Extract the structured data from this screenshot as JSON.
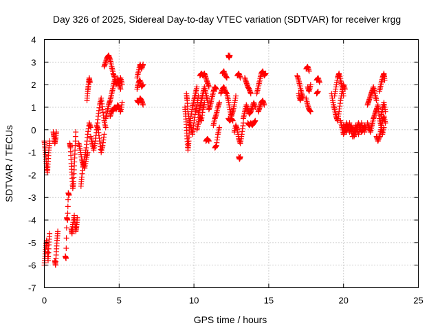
{
  "chart_data": {
    "type": "scatter",
    "title": "Day 326 of 2025, Sidereal Day-to-day VTEC variation (SDTVAR) for receiver krgg",
    "xlabel": "GPS time / hours",
    "ylabel": "SDTVAR / TECUs",
    "xlim": [
      0,
      25
    ],
    "ylim": [
      -7,
      4
    ],
    "xticks": [
      0,
      5,
      10,
      15,
      20,
      25
    ],
    "yticks": [
      -7,
      -6,
      -5,
      -4,
      -3,
      -2,
      -1,
      0,
      1,
      2,
      3,
      4
    ],
    "grid": true,
    "marker": "+",
    "color": "#ff0000",
    "segments": [
      [
        [
          0.0,
          -0.5
        ],
        [
          0.05,
          -0.8
        ],
        [
          0.1,
          -1.2
        ],
        [
          0.15,
          -1.6
        ],
        [
          0.2,
          -1.9
        ],
        [
          0.25,
          -1.4
        ],
        [
          0.3,
          -0.9
        ],
        [
          0.35,
          -0.5
        ]
      ],
      [
        [
          0.0,
          -6.0
        ],
        [
          0.05,
          -5.6
        ],
        [
          0.1,
          -5.2
        ],
        [
          0.15,
          -4.9
        ],
        [
          0.2,
          -5.4
        ],
        [
          0.25,
          -5.8
        ],
        [
          0.3,
          -5.1
        ],
        [
          0.35,
          -4.6
        ]
      ],
      [
        [
          0.6,
          -0.1
        ],
        [
          0.65,
          -0.3
        ],
        [
          0.7,
          -0.6
        ],
        [
          0.75,
          -0.4
        ],
        [
          0.8,
          -0.1
        ]
      ],
      [
        [
          0.7,
          -5.8
        ],
        [
          0.75,
          -6.0
        ],
        [
          0.8,
          -5.4
        ],
        [
          0.85,
          -4.9
        ],
        [
          0.9,
          -4.5
        ]
      ],
      [
        [
          1.4,
          -5.6
        ],
        [
          1.45,
          -5.7
        ],
        [
          1.5,
          -3.9
        ],
        [
          1.55,
          -4.0
        ],
        [
          1.6,
          -2.8
        ],
        [
          1.65,
          -2.9
        ]
      ],
      [
        [
          1.7,
          -0.6
        ],
        [
          1.75,
          -0.8
        ],
        [
          1.8,
          -1.5
        ],
        [
          1.85,
          -2.0
        ],
        [
          1.9,
          -2.6
        ],
        [
          1.95,
          -2.3
        ],
        [
          2.0,
          -1.6
        ],
        [
          2.05,
          -0.9
        ],
        [
          2.1,
          -0.1
        ]
      ],
      [
        [
          1.8,
          -4.4
        ],
        [
          1.85,
          -4.6
        ],
        [
          1.9,
          -4.2
        ],
        [
          2.0,
          -3.8
        ],
        [
          2.1,
          -4.5
        ],
        [
          2.15,
          -4.3
        ],
        [
          2.2,
          -3.9
        ]
      ],
      [
        [
          2.3,
          -0.6
        ],
        [
          2.4,
          -0.9
        ],
        [
          2.5,
          -1.3
        ],
        [
          2.6,
          -1.6
        ],
        [
          2.7,
          -1.2
        ],
        [
          2.8,
          -0.8
        ],
        [
          2.9,
          -0.2
        ],
        [
          3.0,
          0.3
        ],
        [
          3.1,
          0.1
        ]
      ],
      [
        [
          2.45,
          -2.5
        ],
        [
          2.5,
          -2.1
        ],
        [
          2.6,
          -1.5
        ],
        [
          2.7,
          -1.7
        ],
        [
          2.8,
          -1.3
        ],
        [
          2.9,
          -1.0
        ]
      ],
      [
        [
          2.85,
          1.3
        ],
        [
          2.9,
          1.7
        ],
        [
          2.95,
          2.0
        ],
        [
          3.0,
          2.3
        ],
        [
          3.05,
          2.1
        ]
      ],
      [
        [
          3.1,
          -0.3
        ],
        [
          3.2,
          -0.6
        ],
        [
          3.3,
          -0.9
        ],
        [
          3.4,
          -0.5
        ],
        [
          3.5,
          0.0
        ],
        [
          3.6,
          0.6
        ],
        [
          3.7,
          1.1
        ],
        [
          3.8,
          1.4
        ],
        [
          3.9,
          0.9
        ],
        [
          4.0,
          0.4
        ],
        [
          4.1,
          0.1
        ]
      ],
      [
        [
          3.5,
          0.2
        ],
        [
          3.6,
          0.0
        ],
        [
          3.7,
          -0.5
        ],
        [
          3.8,
          -1.0
        ],
        [
          3.9,
          -0.7
        ],
        [
          4.0,
          -0.2
        ]
      ],
      [
        [
          4.1,
          0.5
        ],
        [
          4.2,
          0.8
        ],
        [
          4.3,
          1.1
        ],
        [
          4.4,
          1.3
        ],
        [
          4.5,
          1.6
        ],
        [
          4.6,
          1.9
        ],
        [
          4.7,
          2.2
        ]
      ],
      [
        [
          4.0,
          2.8
        ],
        [
          4.1,
          3.0
        ],
        [
          4.2,
          3.2
        ],
        [
          4.3,
          3.3
        ],
        [
          4.4,
          3.1
        ],
        [
          4.5,
          2.8
        ],
        [
          4.6,
          2.5
        ],
        [
          4.7,
          2.3
        ],
        [
          4.8,
          2.0
        ],
        [
          4.9,
          2.2
        ],
        [
          5.0,
          2.0
        ],
        [
          5.1,
          1.8
        ]
      ],
      [
        [
          4.4,
          0.6
        ],
        [
          4.5,
          0.8
        ],
        [
          4.6,
          0.9
        ],
        [
          4.7,
          1.0
        ],
        [
          4.8,
          0.9
        ],
        [
          4.9,
          1.1
        ],
        [
          5.0,
          1.0
        ],
        [
          5.1,
          0.8
        ],
        [
          5.2,
          1.2
        ]
      ],
      [
        [
          4.9,
          2.3
        ],
        [
          5.0,
          2.1
        ],
        [
          5.1,
          2.3
        ],
        [
          5.2,
          2.0
        ]
      ],
      [
        [
          6.2,
          2.3
        ],
        [
          6.3,
          2.6
        ],
        [
          6.4,
          2.9
        ],
        [
          6.5,
          2.7
        ],
        [
          6.6,
          2.9
        ]
      ],
      [
        [
          6.2,
          1.3
        ],
        [
          6.3,
          1.2
        ],
        [
          6.4,
          1.4
        ],
        [
          6.5,
          1.3
        ],
        [
          6.6,
          1.1
        ]
      ],
      [
        [
          6.2,
          1.8
        ],
        [
          6.3,
          2.1
        ],
        [
          6.4,
          2.2
        ],
        [
          6.5,
          1.9
        ],
        [
          6.6,
          2.0
        ]
      ],
      [
        [
          9.4,
          1.0
        ],
        [
          9.45,
          0.6
        ],
        [
          9.5,
          0.1
        ],
        [
          9.55,
          -0.4
        ],
        [
          9.6,
          -0.9
        ],
        [
          9.65,
          -0.5
        ],
        [
          9.7,
          0.2
        ],
        [
          9.8,
          0.6
        ],
        [
          9.9,
          1.0
        ],
        [
          10.0,
          1.3
        ],
        [
          10.1,
          1.6
        ],
        [
          10.2,
          1.9
        ]
      ],
      [
        [
          9.5,
          1.6
        ],
        [
          9.55,
          1.3
        ],
        [
          9.6,
          0.8
        ],
        [
          9.7,
          0.4
        ],
        [
          9.8,
          0.1
        ],
        [
          9.9,
          -0.2
        ],
        [
          10.0,
          0.3
        ],
        [
          10.1,
          0.8
        ],
        [
          10.2,
          1.1
        ],
        [
          10.3,
          1.5
        ]
      ],
      [
        [
          10.4,
          2.4
        ],
        [
          10.5,
          2.5
        ],
        [
          10.6,
          2.4
        ],
        [
          10.7,
          2.5
        ],
        [
          10.8,
          2.3
        ],
        [
          10.9,
          2.1
        ],
        [
          11.0,
          1.9
        ]
      ],
      [
        [
          10.3,
          0.7
        ],
        [
          10.4,
          1.0
        ],
        [
          10.5,
          1.3
        ],
        [
          10.6,
          1.6
        ],
        [
          10.7,
          1.9
        ],
        [
          10.8,
          1.6
        ],
        [
          10.9,
          1.3
        ],
        [
          11.0,
          0.9
        ],
        [
          11.1,
          1.1
        ],
        [
          11.2,
          1.4
        ],
        [
          11.3,
          1.7
        ],
        [
          11.4,
          1.9
        ],
        [
          11.5,
          1.8
        ]
      ],
      [
        [
          10.2,
          0.0
        ],
        [
          10.3,
          0.3
        ],
        [
          10.4,
          0.6
        ],
        [
          10.5,
          0.4
        ],
        [
          10.6,
          0.9
        ],
        [
          10.7,
          1.2
        ]
      ],
      [
        [
          10.8,
          -0.5
        ],
        [
          10.9,
          -0.4
        ],
        [
          11.0,
          -0.5
        ]
      ],
      [
        [
          11.3,
          0.2
        ],
        [
          11.4,
          0.5
        ],
        [
          11.5,
          0.7
        ],
        [
          11.6,
          1.0
        ],
        [
          11.7,
          1.2
        ]
      ],
      [
        [
          11.4,
          -0.8
        ],
        [
          11.5,
          -0.7
        ],
        [
          11.6,
          -0.2
        ],
        [
          11.7,
          0.1
        ]
      ],
      [
        [
          11.8,
          1.6
        ],
        [
          11.9,
          1.8
        ],
        [
          12.0,
          1.9
        ],
        [
          12.1,
          1.7
        ],
        [
          12.2,
          1.6
        ],
        [
          12.3,
          1.3
        ],
        [
          12.4,
          0.9
        ],
        [
          12.5,
          0.6
        ],
        [
          12.6,
          0.8
        ],
        [
          12.7,
          1.1
        ],
        [
          12.8,
          1.5
        ]
      ],
      [
        [
          12.3,
          0.5
        ],
        [
          12.4,
          0.4
        ],
        [
          12.5,
          0.5
        ],
        [
          12.6,
          0.4
        ]
      ],
      [
        [
          12.3,
          3.3
        ],
        [
          12.35,
          3.2
        ],
        [
          12.4,
          3.3
        ]
      ],
      [
        [
          11.9,
          2.5
        ],
        [
          12.0,
          2.6
        ],
        [
          12.1,
          2.4
        ],
        [
          12.2,
          2.3
        ]
      ],
      [
        [
          12.7,
          -0.1
        ],
        [
          12.8,
          0.2
        ],
        [
          12.9,
          0.0
        ],
        [
          13.0,
          -0.4
        ],
        [
          13.1,
          -0.6
        ],
        [
          13.2,
          -0.2
        ],
        [
          13.3,
          0.3
        ]
      ],
      [
        [
          13.0,
          -1.2
        ],
        [
          13.05,
          -1.3
        ],
        [
          13.1,
          -1.2
        ]
      ],
      [
        [
          12.9,
          2.4
        ],
        [
          13.0,
          2.5
        ],
        [
          13.1,
          2.3
        ]
      ],
      [
        [
          13.4,
          2.3
        ],
        [
          13.5,
          2.1
        ],
        [
          13.6,
          1.9
        ],
        [
          13.7,
          1.8
        ],
        [
          13.8,
          1.6
        ]
      ],
      [
        [
          13.3,
          0.5
        ],
        [
          13.4,
          0.8
        ],
        [
          13.5,
          1.1
        ],
        [
          13.6,
          0.9
        ],
        [
          13.7,
          0.7
        ],
        [
          13.8,
          0.8
        ],
        [
          13.9,
          1.0
        ],
        [
          14.0,
          1.2
        ],
        [
          14.1,
          1.0
        ]
      ],
      [
        [
          13.6,
          0.3
        ],
        [
          13.7,
          0.2
        ],
        [
          13.8,
          0.3
        ],
        [
          13.9,
          0.2
        ],
        [
          14.0,
          0.3
        ],
        [
          14.1,
          0.4
        ]
      ],
      [
        [
          14.2,
          1.6
        ],
        [
          14.3,
          1.9
        ],
        [
          14.4,
          2.2
        ],
        [
          14.5,
          2.5
        ],
        [
          14.6,
          2.6
        ],
        [
          14.7,
          2.4
        ],
        [
          14.8,
          2.5
        ]
      ],
      [
        [
          14.3,
          0.8
        ],
        [
          14.4,
          1.0
        ],
        [
          14.5,
          1.2
        ],
        [
          14.6,
          1.3
        ],
        [
          14.7,
          1.1
        ]
      ],
      [
        [
          16.9,
          2.4
        ],
        [
          17.0,
          2.2
        ],
        [
          17.1,
          1.9
        ],
        [
          17.2,
          1.6
        ],
        [
          17.3,
          1.4
        ]
      ],
      [
        [
          17.0,
          1.6
        ],
        [
          17.1,
          1.3
        ],
        [
          17.2,
          1.5
        ]
      ],
      [
        [
          17.5,
          2.7
        ],
        [
          17.6,
          2.8
        ],
        [
          17.7,
          2.6
        ]
      ],
      [
        [
          17.5,
          1.4
        ],
        [
          17.6,
          1.1
        ],
        [
          17.7,
          0.9
        ],
        [
          17.8,
          0.8
        ]
      ],
      [
        [
          17.6,
          1.9
        ],
        [
          17.7,
          1.7
        ],
        [
          17.8,
          2.0
        ]
      ],
      [
        [
          18.2,
          2.2
        ],
        [
          18.3,
          2.3
        ],
        [
          18.4,
          2.1
        ]
      ],
      [
        [
          18.2,
          1.6
        ],
        [
          18.3,
          1.7
        ]
      ],
      [
        [
          19.2,
          1.6
        ],
        [
          19.3,
          1.2
        ],
        [
          19.4,
          0.9
        ],
        [
          19.5,
          0.6
        ],
        [
          19.6,
          0.4
        ],
        [
          19.7,
          0.8
        ],
        [
          19.8,
          1.3
        ],
        [
          19.9,
          1.7
        ],
        [
          20.0,
          2.0
        ],
        [
          20.1,
          1.8
        ]
      ],
      [
        [
          19.4,
          1.5
        ],
        [
          19.5,
          1.9
        ],
        [
          19.6,
          2.3
        ],
        [
          19.7,
          2.5
        ],
        [
          19.8,
          2.2
        ],
        [
          19.9,
          1.9
        ],
        [
          20.0,
          1.5
        ]
      ],
      [
        [
          19.8,
          0.4
        ],
        [
          19.9,
          0.1
        ],
        [
          20.0,
          -0.2
        ],
        [
          20.1,
          0.0
        ],
        [
          20.2,
          0.3
        ],
        [
          20.3,
          0.1
        ],
        [
          20.4,
          -0.1
        ],
        [
          20.5,
          0.2
        ],
        [
          20.6,
          0.0
        ],
        [
          20.7,
          -0.3
        ],
        [
          20.8,
          -0.1
        ],
        [
          20.9,
          0.1
        ],
        [
          21.0,
          0.3
        ],
        [
          21.1,
          0.1
        ],
        [
          21.2,
          -0.1
        ],
        [
          21.3,
          0.0
        ],
        [
          21.4,
          0.2
        ],
        [
          21.5,
          0.0
        ]
      ],
      [
        [
          20.0,
          0.2
        ],
        [
          20.2,
          -0.1
        ],
        [
          20.4,
          0.3
        ],
        [
          20.6,
          -0.3
        ],
        [
          20.8,
          0.2
        ],
        [
          21.0,
          -0.2
        ],
        [
          21.2,
          0.3
        ],
        [
          21.4,
          -0.1
        ]
      ],
      [
        [
          21.6,
          0.3
        ],
        [
          21.7,
          0.1
        ],
        [
          21.8,
          -0.1
        ],
        [
          21.9,
          0.2
        ],
        [
          22.0,
          0.5
        ],
        [
          22.1,
          0.7
        ],
        [
          22.2,
          0.9
        ],
        [
          22.3,
          1.1
        ],
        [
          22.4,
          0.5
        ],
        [
          22.5,
          0.2
        ],
        [
          22.6,
          -0.2
        ],
        [
          22.7,
          0.1
        ]
      ],
      [
        [
          21.6,
          1.1
        ],
        [
          21.7,
          1.3
        ],
        [
          21.8,
          1.5
        ],
        [
          21.9,
          1.7
        ],
        [
          22.0,
          1.9
        ],
        [
          22.1,
          1.6
        ],
        [
          22.2,
          1.3
        ]
      ],
      [
        [
          22.2,
          -0.3
        ],
        [
          22.3,
          -0.5
        ],
        [
          22.4,
          -0.3
        ],
        [
          22.5,
          0.0
        ],
        [
          22.6,
          0.4
        ],
        [
          22.7,
          0.6
        ],
        [
          22.8,
          0.3
        ]
      ],
      [
        [
          22.4,
          1.7
        ],
        [
          22.5,
          2.0
        ],
        [
          22.6,
          2.3
        ],
        [
          22.7,
          2.5
        ],
        [
          22.75,
          2.2
        ]
      ],
      [
        [
          22.5,
          0.6
        ],
        [
          22.6,
          0.9
        ],
        [
          22.7,
          1.2
        ],
        [
          22.8,
          0.8
        ]
      ]
    ]
  }
}
